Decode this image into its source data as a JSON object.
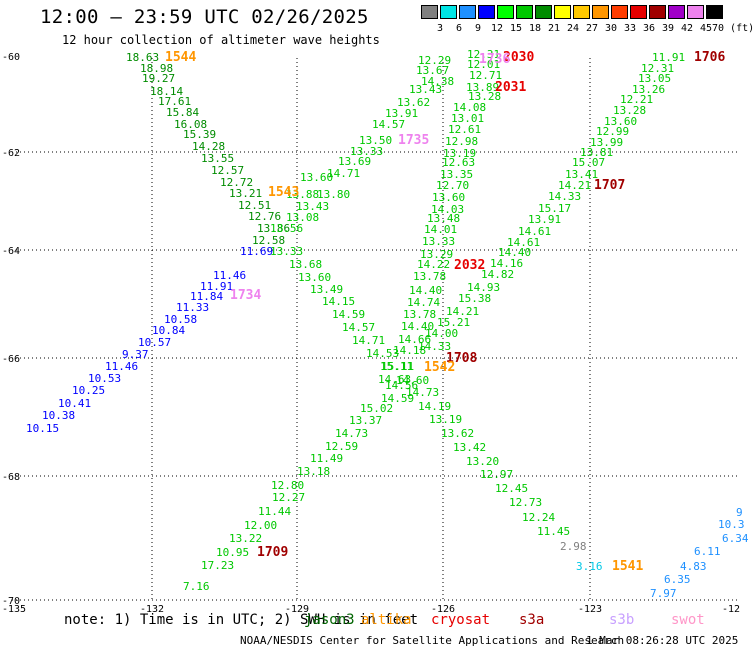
{
  "header": {
    "title": "12:00 – 23:59 UTC 02/26/2025",
    "subtitle": "12 hour collection of altimeter wave heights"
  },
  "legend": {
    "colors": [
      "#808080",
      "#00e5e5",
      "#1e90ff",
      "#0000ff",
      "#00ff00",
      "#00c800",
      "#008c00",
      "#ffff00",
      "#ffc800",
      "#ff9600",
      "#ff3c00",
      "#e60000",
      "#a00000",
      "#a000c8",
      "#ee82ee",
      "#000000"
    ],
    "labels": [
      "3",
      "6",
      "9",
      "12",
      "15",
      "18",
      "21",
      "24",
      "27",
      "30",
      "33",
      "36",
      "39",
      "42",
      "45"
    ],
    "unit": "70 (ft)"
  },
  "axes": {
    "lon_labels": [
      "-135",
      "-132",
      "-129",
      "-126",
      "-123",
      "-12"
    ],
    "lat_labels": [
      "-60",
      "-62",
      "-64",
      "-66",
      "-68",
      "-70"
    ]
  },
  "tracks": [
    {
      "values": [
        "18.63",
        "18.98",
        "19.27",
        "18.14",
        "17.61",
        "15.84",
        "16.08",
        "15.39",
        "14.28",
        "13.55",
        "12.57",
        "12.72",
        "13.21",
        "12.51",
        "12.76",
        "13.86",
        "12.58"
      ],
      "color": "#008c00"
    },
    {
      "values": [
        "13.60",
        "13.43",
        "13.08",
        "13.56",
        "13.88",
        "13.33"
      ],
      "color": "#00c800"
    },
    {
      "values": [
        "13.68",
        "13.60",
        "13.49",
        "14.15",
        "14.59",
        "14.57",
        "14.71",
        "14.53",
        "15.11",
        "14.56",
        "14.59",
        "14.63",
        "14.60",
        "14.73",
        "14.19",
        "13.19",
        "13.62",
        "13.42",
        "13.20",
        "12.97",
        "12.45",
        "12.73",
        "12.24",
        "11.45"
      ],
      "color": "#00c800"
    },
    {
      "values": [
        "11.69",
        "11.46",
        "11.91",
        "11.84",
        "11.33",
        "10.58",
        "10.84",
        "10.57",
        "9.37",
        "11.46",
        "10.53",
        "10.25",
        "10.41",
        "10.38",
        "10.15"
      ],
      "color": "#0000ff"
    },
    {
      "values": [
        "12.29",
        "13.67",
        "14.38",
        "13.43",
        "13.62",
        "13.91",
        "14.57",
        "13.50",
        "13.33",
        "13.69",
        "14.71",
        "13.80"
      ],
      "color": "#00c800"
    },
    {
      "values": [
        "12.31",
        "12.01",
        "12.71",
        "13.89",
        "13.28",
        "14.08",
        "13.01",
        "12.61",
        "12.98",
        "13.19",
        "12.63",
        "13.35",
        "12.70",
        "13.60",
        "14.03",
        "13.48",
        "14.01",
        "13.33",
        "13.29",
        "14.22",
        "13.78",
        "14.40",
        "14.74",
        "13.78",
        "14.40",
        "14.66",
        "14.18",
        "15.11",
        "15.02",
        "13.37",
        "14.73",
        "12.59",
        "11.49",
        "13.18",
        "12.80",
        "12.27",
        "11.44",
        "12.00",
        "13.22",
        "10.95",
        "17.23",
        "7.16"
      ],
      "color": "#00c800"
    },
    {
      "values": [
        "11.91",
        "12.31",
        "13.05",
        "13.26",
        "12.21",
        "13.28",
        "13.60",
        "12.99",
        "13.99",
        "13.81",
        "15.07",
        "13.41",
        "14.21",
        "14.33",
        "15.17",
        "13.91",
        "14.61",
        "14.61",
        "14.40",
        "14.16",
        "14.82",
        "14.93",
        "15.38",
        "14.21",
        "15.21",
        "14.00",
        "14.33"
      ],
      "color": "#00c800"
    },
    {
      "values": [
        "9",
        "10.3",
        "6.34",
        "6.11",
        "4.83",
        "6.35",
        "7.97",
        "3.16",
        "2.98"
      ],
      "color": "#1e90ff"
    }
  ],
  "time_labels": [
    "1544",
    "1543",
    "1734",
    "2030",
    "1736",
    "2031",
    "1735",
    "1706",
    "1707",
    "2032",
    "1708",
    "1542",
    "1709",
    "1541"
  ],
  "footer": {
    "note": "note: 1) Time is in UTC; 2) SWH is in feet",
    "satellites": [
      {
        "name": "jason3",
        "color": "#006400"
      },
      {
        "name": "altika",
        "color": "#ff9600"
      },
      {
        "name": "cryosat",
        "color": "#e60000"
      },
      {
        "name": "s3a",
        "color": "#a00000"
      },
      {
        "name": "s3b",
        "color": "#c8a0ff"
      },
      {
        "name": "swot",
        "color": "#ff96c8"
      }
    ],
    "credit": "NOAA/NESDIS Center for Satellite Applications and Research",
    "timestamp": "1 Mar 08:26:28 UTC 2025"
  }
}
